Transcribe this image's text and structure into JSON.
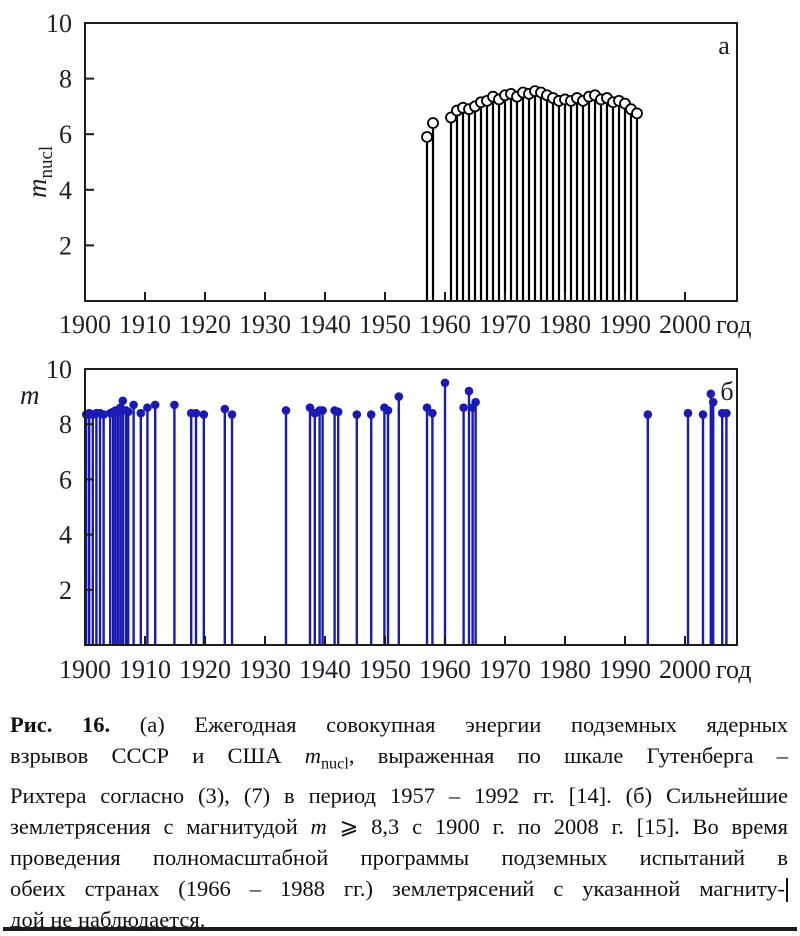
{
  "figure": {
    "caption": {
      "lines": [
        [
          {
            "s": "b",
            "t": "Рис. 16."
          },
          {
            "s": "",
            "t": " (а) Ежегодная совокупная энергии подземных ядерных"
          }
        ],
        [
          {
            "s": "",
            "t": "взрывов СССР и США "
          },
          {
            "s": "i",
            "t": "m"
          },
          {
            "s": "sub",
            "t": "nucl"
          },
          {
            "s": "",
            "t": ", выраженная по шкале Гутенберга –"
          }
        ],
        [
          {
            "s": "",
            "t": "Рихтера согласно (3), (7) в период 1957 – 1992 гг. [14]. (б) Сильнейшие"
          }
        ],
        [
          {
            "s": "",
            "t": "землетрясения с магнитудой "
          },
          {
            "s": "i",
            "t": "m"
          },
          {
            "s": "",
            "t": " ⩾ 8,3 с 1900 г. по 2008 г. [15]. Во время"
          }
        ],
        [
          {
            "s": "",
            "t": "проведения полномасштабной программы подземных испытаний в"
          }
        ],
        [
          {
            "s": "",
            "t": "обеих странах (1966 – 1988 гг.) землетрясений с указанной магниту-"
          },
          {
            "s": "bar",
            "t": ""
          }
        ],
        [
          {
            "s": "",
            "t": "дой не наблюдается."
          }
        ]
      ]
    }
  },
  "chart_data": [
    {
      "type": "stem",
      "panel_label": "а",
      "title": "Ежегодная совокупная энергия подземных ядерных взрывов СССР и США (шкала Гутенберга–Рихтера), 1957–1992 гг.",
      "ylabel_main": "m",
      "ylabel_sub": "nucl",
      "xlabel": "год",
      "xlim": [
        1900,
        2008.7
      ],
      "ylim": [
        0,
        10
      ],
      "x_ticks": [
        1900,
        1910,
        1920,
        1930,
        1940,
        1950,
        1960,
        1970,
        1980,
        1990,
        2000
      ],
      "y_ticks": [
        2,
        4,
        6,
        8,
        10
      ],
      "stem_color": "#000000",
      "marker": "open-circle",
      "marker_fill": "#ffffff",
      "points": [
        [
          1957,
          5.9
        ],
        [
          1958,
          6.4
        ],
        [
          1961,
          6.6
        ],
        [
          1962,
          6.85
        ],
        [
          1963,
          6.95
        ],
        [
          1964,
          6.9
        ],
        [
          1965,
          7.0
        ],
        [
          1966,
          7.15
        ],
        [
          1967,
          7.2
        ],
        [
          1968,
          7.35
        ],
        [
          1969,
          7.25
        ],
        [
          1970,
          7.4
        ],
        [
          1971,
          7.45
        ],
        [
          1972,
          7.35
        ],
        [
          1973,
          7.5
        ],
        [
          1974,
          7.45
        ],
        [
          1975,
          7.55
        ],
        [
          1976,
          7.5
        ],
        [
          1977,
          7.4
        ],
        [
          1978,
          7.3
        ],
        [
          1979,
          7.2
        ],
        [
          1980,
          7.25
        ],
        [
          1981,
          7.2
        ],
        [
          1982,
          7.3
        ],
        [
          1983,
          7.2
        ],
        [
          1984,
          7.35
        ],
        [
          1985,
          7.4
        ],
        [
          1986,
          7.25
        ],
        [
          1987,
          7.3
        ],
        [
          1988,
          7.15
        ],
        [
          1989,
          7.2
        ],
        [
          1990,
          7.1
        ],
        [
          1991,
          6.9
        ],
        [
          1992,
          6.75
        ]
      ]
    },
    {
      "type": "stem",
      "panel_label": "б",
      "title": "Сильнейшие землетрясения с магнитудой m ⩾ 8,3 с 1900 г. по 2008 г.",
      "ylabel_main": "m",
      "ylabel_sub": "",
      "xlabel": "год",
      "xlim": [
        1900,
        2008.7
      ],
      "ylim": [
        0,
        10
      ],
      "x_ticks": [
        1900,
        1910,
        1920,
        1930,
        1940,
        1950,
        1960,
        1970,
        1980,
        1990,
        2000
      ],
      "y_ticks": [
        2,
        4,
        6,
        8,
        10
      ],
      "stem_color": "#1a1ab5",
      "marker": "filled-circle",
      "marker_fill": "#1a1ab5",
      "points": [
        [
          1900.2,
          8.35
        ],
        [
          1900.7,
          8.4
        ],
        [
          1901.3,
          8.35
        ],
        [
          1901.9,
          8.4
        ],
        [
          1902.5,
          8.4
        ],
        [
          1903.1,
          8.35
        ],
        [
          1904.2,
          8.4
        ],
        [
          1904.7,
          8.45
        ],
        [
          1905.1,
          8.5
        ],
        [
          1905.5,
          8.45
        ],
        [
          1905.9,
          8.6
        ],
        [
          1906.3,
          8.85
        ],
        [
          1906.8,
          8.5
        ],
        [
          1907.2,
          8.45
        ],
        [
          1908.1,
          8.7
        ],
        [
          1909.3,
          8.4
        ],
        [
          1910.4,
          8.6
        ],
        [
          1911.7,
          8.7
        ],
        [
          1914.9,
          8.7
        ],
        [
          1917.7,
          8.4
        ],
        [
          1918.5,
          8.4
        ],
        [
          1919.8,
          8.35
        ],
        [
          1923.3,
          8.55
        ],
        [
          1924.5,
          8.35
        ],
        [
          1933.5,
          8.5
        ],
        [
          1937.5,
          8.6
        ],
        [
          1938.3,
          8.4
        ],
        [
          1939.1,
          8.5
        ],
        [
          1939.6,
          8.5
        ],
        [
          1941.6,
          8.5
        ],
        [
          1942.2,
          8.45
        ],
        [
          1945.3,
          8.35
        ],
        [
          1947.7,
          8.35
        ],
        [
          1949.9,
          8.6
        ],
        [
          1950.5,
          8.5
        ],
        [
          1952.3,
          9.0
        ],
        [
          1957.0,
          8.6
        ],
        [
          1957.9,
          8.4
        ],
        [
          1960.0,
          9.5
        ],
        [
          1963.1,
          8.6
        ],
        [
          1964.0,
          9.2
        ],
        [
          1964.6,
          8.6
        ],
        [
          1965.1,
          8.8
        ],
        [
          1993.8,
          8.35
        ],
        [
          2000.5,
          8.4
        ],
        [
          2003.0,
          8.35
        ],
        [
          2004.3,
          9.1
        ],
        [
          2004.7,
          8.8
        ],
        [
          2006.2,
          8.4
        ],
        [
          2006.9,
          8.4
        ]
      ]
    }
  ]
}
